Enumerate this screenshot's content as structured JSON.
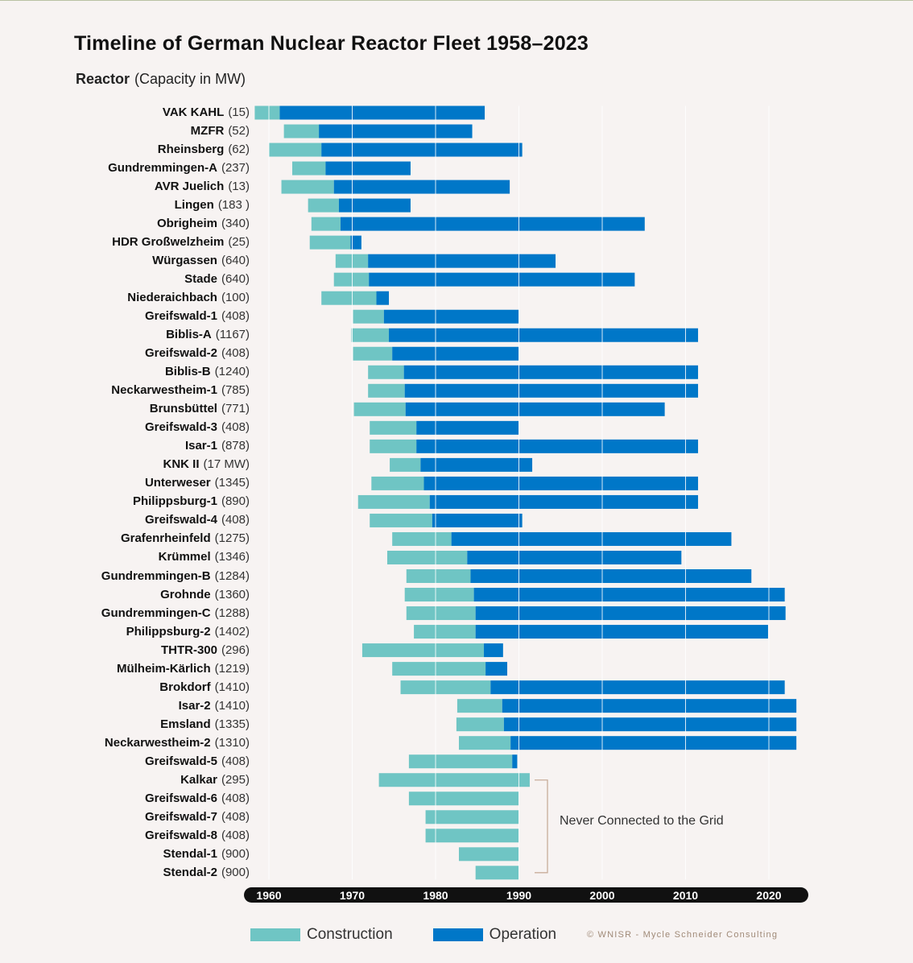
{
  "title": "Timeline of German Nuclear Reactor Fleet 1958–2023",
  "row_header": {
    "bold": "Reactor",
    "light": "(Capacity in MW)"
  },
  "colors": {
    "construction": "#6fc5c4",
    "operation": "#0077c8",
    "axis_bar": "#111111",
    "bracket": "#c8ad9a"
  },
  "annotation": "Never Connected to the Grid",
  "copyright": "© WNISR - Mycle Schneider Consulting",
  "legend": {
    "construction": "Construction",
    "operation": "Operation"
  },
  "chart_data": {
    "type": "bar",
    "orientation": "horizontal-timeline",
    "title": "Timeline of German Nuclear Reactor Fleet 1958–2023",
    "xlim": [
      1958,
      2023
    ],
    "x_ticks": [
      1960,
      1970,
      1980,
      1990,
      2000,
      2010,
      2020
    ],
    "grid": true,
    "series": [
      {
        "name": "Construction",
        "color": "#6fc5c4"
      },
      {
        "name": "Operation",
        "color": "#0077c8"
      }
    ],
    "reactors": [
      {
        "name": "VAK KAHL",
        "cap": "(15)",
        "c_start": 1958.3,
        "op_start": 1961.3,
        "end": 1985.9
      },
      {
        "name": "MZFR",
        "cap": "(52)",
        "c_start": 1961.8,
        "op_start": 1966.0,
        "end": 1984.4
      },
      {
        "name": "Rheinsberg",
        "cap": "(62)",
        "c_start": 1960.0,
        "op_start": 1966.3,
        "end": 1990.4
      },
      {
        "name": "Gundremmingen-A",
        "cap": "(237)",
        "c_start": 1962.8,
        "op_start": 1966.8,
        "end": 1977.0
      },
      {
        "name": "AVR Juelich",
        "cap": "(13)",
        "c_start": 1961.5,
        "op_start": 1967.8,
        "end": 1988.9
      },
      {
        "name": "Lingen",
        "cap": "(183 )",
        "c_start": 1964.7,
        "op_start": 1968.4,
        "end": 1977.0
      },
      {
        "name": "Obrigheim",
        "cap": "(340)",
        "c_start": 1965.1,
        "op_start": 1968.6,
        "end": 2005.1
      },
      {
        "name": "HDR Großwelzheim",
        "cap": "(25)",
        "c_start": 1964.9,
        "op_start": 1969.8,
        "end": 1971.1
      },
      {
        "name": "Würgassen",
        "cap": "(640)",
        "c_start": 1968.0,
        "op_start": 1971.9,
        "end": 1994.4
      },
      {
        "name": "Stade",
        "cap": "(640)",
        "c_start": 1967.8,
        "op_start": 1972.0,
        "end": 2003.9
      },
      {
        "name": "Niederaichbach",
        "cap": "(100)",
        "c_start": 1966.3,
        "op_start": 1972.9,
        "end": 1974.4
      },
      {
        "name": "Greifswald-1",
        "cap": "(408)",
        "c_start": 1970.1,
        "op_start": 1973.8,
        "end": 1990.0
      },
      {
        "name": "Biblis-A",
        "cap": "(1167)",
        "c_start": 1969.9,
        "op_start": 1974.4,
        "end": 2011.5
      },
      {
        "name": "Greifswald-2",
        "cap": "(408)",
        "c_start": 1970.1,
        "op_start": 1974.8,
        "end": 1990.0
      },
      {
        "name": "Biblis-B",
        "cap": "(1240)",
        "c_start": 1971.9,
        "op_start": 1976.2,
        "end": 2011.5
      },
      {
        "name": "Neckarwestheim-1",
        "cap": "(785)",
        "c_start": 1971.9,
        "op_start": 1976.3,
        "end": 2011.5
      },
      {
        "name": "Brunsbüttel",
        "cap": "(771)",
        "c_start": 1970.2,
        "op_start": 1976.4,
        "end": 2007.5
      },
      {
        "name": "Greifswald-3",
        "cap": "(408)",
        "c_start": 1972.1,
        "op_start": 1977.7,
        "end": 1990.0
      },
      {
        "name": "Isar-1",
        "cap": "(878)",
        "c_start": 1972.1,
        "op_start": 1977.7,
        "end": 2011.5
      },
      {
        "name": "KNK II",
        "cap": "(17 MW)",
        "c_start": 1974.5,
        "op_start": 1978.2,
        "end": 1991.6
      },
      {
        "name": "Unterweser",
        "cap": "(1345)",
        "c_start": 1972.3,
        "op_start": 1978.6,
        "end": 2011.5
      },
      {
        "name": "Philippsburg-1",
        "cap": "(890)",
        "c_start": 1970.7,
        "op_start": 1979.3,
        "end": 2011.5
      },
      {
        "name": "Greifswald-4",
        "cap": "(408)",
        "c_start": 1972.1,
        "op_start": 1979.6,
        "end": 1990.4
      },
      {
        "name": "Grafenrheinfeld",
        "cap": "(1275)",
        "c_start": 1974.8,
        "op_start": 1981.9,
        "end": 2015.5
      },
      {
        "name": "Krümmel",
        "cap": "(1346)",
        "c_start": 1974.2,
        "op_start": 1983.8,
        "end": 2009.5
      },
      {
        "name": "Gundremmingen-B",
        "cap": "(1284)",
        "c_start": 1976.5,
        "op_start": 1984.2,
        "end": 2017.9
      },
      {
        "name": "Grohnde",
        "cap": "(1360)",
        "c_start": 1976.3,
        "op_start": 1984.6,
        "end": 2021.9
      },
      {
        "name": "Gundremmingen-C",
        "cap": "(1288)",
        "c_start": 1976.5,
        "op_start": 1984.8,
        "end": 2022.0
      },
      {
        "name": "Philippsburg-2",
        "cap": "(1402)",
        "c_start": 1977.4,
        "op_start": 1984.8,
        "end": 2019.9
      },
      {
        "name": "THTR-300",
        "cap": "(296)",
        "c_start": 1971.2,
        "op_start": 1985.8,
        "end": 1988.1
      },
      {
        "name": "Mülheim-Kärlich",
        "cap": "(1219)",
        "c_start": 1974.8,
        "op_start": 1986.0,
        "end": 1988.6
      },
      {
        "name": "Brokdorf",
        "cap": "(1410)",
        "c_start": 1975.8,
        "op_start": 1986.6,
        "end": 2021.9
      },
      {
        "name": "Isar-2",
        "cap": "(1410)",
        "c_start": 1982.6,
        "op_start": 1988.0,
        "end": 2023.3
      },
      {
        "name": "Emsland",
        "cap": "(1335)",
        "c_start": 1982.5,
        "op_start": 1988.2,
        "end": 2023.3
      },
      {
        "name": "Neckarwestheim-2",
        "cap": "(1310)",
        "c_start": 1982.8,
        "op_start": 1989.0,
        "end": 2023.3
      },
      {
        "name": "Greifswald-5",
        "cap": "(408)",
        "c_start": 1976.8,
        "op_start": 1989.2,
        "end": 1989.8
      },
      {
        "name": "Kalkar",
        "cap": "(295)",
        "c_start": 1973.2,
        "op_start": null,
        "end": 1991.3
      },
      {
        "name": "Greifswald-6",
        "cap": "(408)",
        "c_start": 1976.8,
        "op_start": null,
        "end": 1990.0
      },
      {
        "name": "Greifswald-7",
        "cap": "(408)",
        "c_start": 1978.8,
        "op_start": null,
        "end": 1990.0
      },
      {
        "name": "Greifswald-8",
        "cap": "(408)",
        "c_start": 1978.8,
        "op_start": null,
        "end": 1990.0
      },
      {
        "name": "Stendal-1",
        "cap": "(900)",
        "c_start": 1982.8,
        "op_start": null,
        "end": 1990.0
      },
      {
        "name": "Stendal-2",
        "cap": "(900)",
        "c_start": 1984.8,
        "op_start": null,
        "end": 1990.0
      }
    ],
    "never_connected_label": "Never Connected to the Grid"
  }
}
